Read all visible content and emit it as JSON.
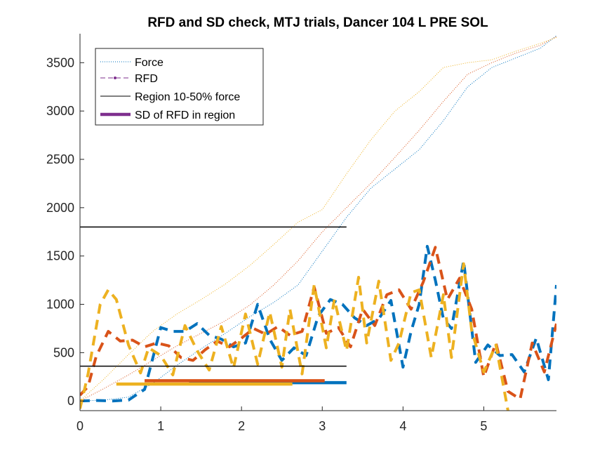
{
  "chart_data": {
    "type": "line",
    "title": "RFD and SD check, MTJ trials, Dancer 104 L PRE SOL",
    "xlabel": "",
    "ylabel": "",
    "xlim": [
      0,
      5.9
    ],
    "ylim": [
      -100,
      3800
    ],
    "xticks": [
      0,
      1,
      2,
      3,
      4,
      5
    ],
    "yticks": [
      0,
      500,
      1000,
      1500,
      2000,
      2500,
      3000,
      3500
    ],
    "grid": false,
    "legend_position": "top-left",
    "legend": [
      {
        "label": "Force",
        "style": "dotted"
      },
      {
        "label": "RFD",
        "style": "dashed-marker"
      },
      {
        "label": "Region 10-50% force",
        "style": "solid-thin"
      },
      {
        "label": "SD of RFD in region",
        "style": "solid-thick"
      }
    ],
    "trial_colors": [
      "#0072BD",
      "#D95319",
      "#EDB120"
    ],
    "legend_colors": {
      "force": "#0072BD",
      "rfd": "#7E2F8E",
      "region": "#000000",
      "sd": "#7E2F8E"
    },
    "force_series": [
      {
        "color": "#0072BD",
        "x": [
          0.0,
          0.3,
          0.6,
          0.9,
          1.2,
          1.5,
          1.8,
          2.1,
          2.4,
          2.7,
          3.0,
          3.3,
          3.6,
          3.9,
          4.2,
          4.5,
          4.8,
          5.1,
          5.4,
          5.7,
          5.9
        ],
        "y": [
          0,
          10,
          40,
          180,
          370,
          540,
          700,
          870,
          1020,
          1200,
          1550,
          1900,
          2200,
          2400,
          2600,
          2900,
          3250,
          3450,
          3550,
          3650,
          3780
        ]
      },
      {
        "color": "#D95319",
        "x": [
          0.0,
          0.3,
          0.6,
          0.9,
          1.2,
          1.5,
          1.8,
          2.1,
          2.4,
          2.7,
          3.0,
          3.3,
          3.6,
          3.9,
          4.2,
          4.5,
          4.8,
          5.1,
          5.4,
          5.7,
          5.9
        ],
        "y": [
          0,
          130,
          270,
          420,
          570,
          700,
          830,
          990,
          1200,
          1450,
          1750,
          2000,
          2250,
          2520,
          2800,
          3100,
          3380,
          3500,
          3600,
          3680,
          3770
        ]
      },
      {
        "color": "#EDB120",
        "x": [
          0.0,
          0.3,
          0.6,
          0.9,
          1.2,
          1.5,
          1.8,
          2.1,
          2.4,
          2.7,
          3.0,
          3.3,
          3.6,
          3.9,
          4.2,
          4.5,
          4.8,
          5.1,
          5.4,
          5.7,
          5.9
        ],
        "y": [
          0,
          230,
          480,
          720,
          900,
          1050,
          1210,
          1400,
          1620,
          1850,
          1980,
          2350,
          2700,
          3000,
          3200,
          3450,
          3500,
          3530,
          3620,
          3700,
          3760
        ]
      }
    ],
    "rfd_series": [
      {
        "color": "#0072BD",
        "x": [
          0.0,
          0.2,
          0.4,
          0.6,
          0.8,
          1.0,
          1.15,
          1.3,
          1.45,
          1.6,
          1.75,
          1.9,
          2.05,
          2.2,
          2.35,
          2.5,
          2.65,
          2.8,
          2.95,
          3.1,
          3.25,
          3.4,
          3.55,
          3.7,
          3.85,
          4.0,
          4.1,
          4.2,
          4.3,
          4.4,
          4.5,
          4.6,
          4.75,
          4.9,
          5.05,
          5.2,
          5.35,
          5.5,
          5.65,
          5.8,
          5.9
        ],
        "y": [
          0,
          5,
          0,
          10,
          120,
          760,
          720,
          720,
          800,
          680,
          640,
          560,
          600,
          1000,
          640,
          420,
          550,
          470,
          880,
          1050,
          1000,
          860,
          780,
          850,
          1040,
          350,
          720,
          1000,
          1600,
          1250,
          850,
          750,
          1450,
          400,
          580,
          470,
          480,
          300,
          650,
          220,
          1200
        ]
      },
      {
        "color": "#D95319",
        "x": [
          0.0,
          0.1,
          0.2,
          0.35,
          0.5,
          0.65,
          0.8,
          0.95,
          1.1,
          1.25,
          1.4,
          1.55,
          1.7,
          1.85,
          2.0,
          2.15,
          2.3,
          2.45,
          2.6,
          2.75,
          2.9,
          3.05,
          3.2,
          3.35,
          3.5,
          3.65,
          3.8,
          3.95,
          4.1,
          4.25,
          4.4,
          4.55,
          4.7,
          4.85,
          5.0,
          5.15,
          5.3,
          5.45,
          5.6,
          5.75,
          5.9
        ],
        "y": [
          60,
          150,
          460,
          720,
          620,
          630,
          560,
          600,
          570,
          450,
          420,
          530,
          620,
          560,
          650,
          750,
          690,
          770,
          680,
          720,
          1180,
          700,
          760,
          560,
          950,
          780,
          1100,
          1150,
          950,
          1230,
          1590,
          1050,
          1270,
          950,
          250,
          600,
          100,
          20,
          600,
          300,
          800
        ]
      },
      {
        "color": "#EDB120",
        "x": [
          0.0,
          0.1,
          0.25,
          0.35,
          0.45,
          0.6,
          0.75,
          0.85,
          1.0,
          1.15,
          1.3,
          1.45,
          1.6,
          1.75,
          1.9,
          2.05,
          2.2,
          2.35,
          2.5,
          2.6,
          2.75,
          2.9,
          3.05,
          3.15,
          3.3,
          3.45,
          3.55,
          3.7,
          3.85,
          3.95,
          4.1,
          4.2,
          4.35,
          4.5,
          4.6,
          4.75,
          4.85,
          5.0,
          5.15,
          5.3
        ],
        "y": [
          -80,
          280,
          1000,
          1150,
          1050,
          580,
          290,
          550,
          470,
          270,
          780,
          520,
          320,
          770,
          340,
          900,
          380,
          920,
          350,
          950,
          280,
          1200,
          550,
          1050,
          520,
          1280,
          600,
          1240,
          420,
          600,
          1120,
          1150,
          450,
          1100,
          450,
          1420,
          730,
          300,
          580,
          -100
        ]
      }
    ],
    "regions": [
      {
        "label": "Region 10-50% force",
        "x": [
          0,
          3.3
        ],
        "y": 1800
      },
      {
        "label": "Region 10-50% force",
        "x": [
          0,
          3.3
        ],
        "y": 360
      }
    ],
    "sd_lines": [
      {
        "color": "#0072BD",
        "x": [
          1.35,
          3.3
        ],
        "y": 190
      },
      {
        "color": "#D95319",
        "x": [
          0.8,
          3.03
        ],
        "y": 210
      },
      {
        "color": "#EDB120",
        "x": [
          0.45,
          2.63
        ],
        "y": 175
      }
    ]
  }
}
